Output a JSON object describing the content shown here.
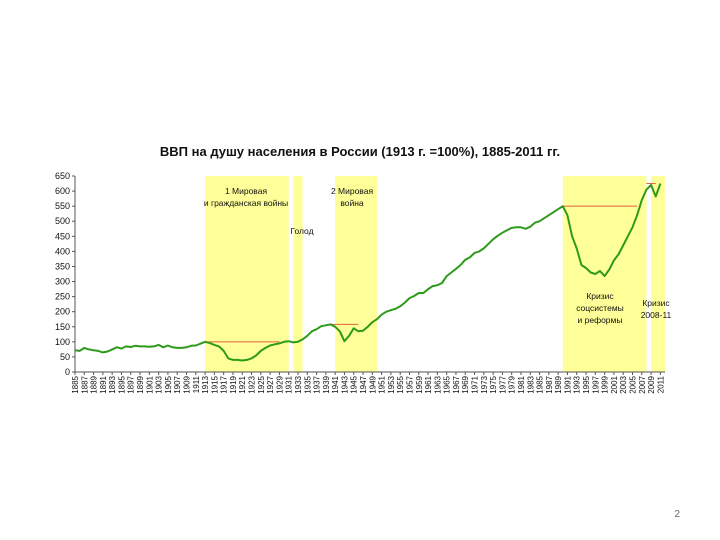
{
  "page_number": "2",
  "chart_data": {
    "type": "line",
    "title": "ВВП на душу населения в России (1913 г. =100%), 1885-2011 гг.",
    "xlabel": "",
    "ylabel": "",
    "xlim": [
      1885,
      2012
    ],
    "ylim": [
      0,
      650
    ],
    "y_ticks": [
      0,
      50,
      100,
      150,
      200,
      250,
      300,
      350,
      400,
      450,
      500,
      550,
      600,
      650
    ],
    "x_ticks": [
      1885,
      1887,
      1889,
      1891,
      1893,
      1895,
      1897,
      1899,
      1901,
      1903,
      1905,
      1907,
      1909,
      1911,
      1913,
      1915,
      1917,
      1919,
      1921,
      1923,
      1925,
      1927,
      1929,
      1931,
      1933,
      1935,
      1937,
      1939,
      1941,
      1943,
      1945,
      1947,
      1949,
      1951,
      1953,
      1955,
      1957,
      1959,
      1961,
      1963,
      1965,
      1967,
      1969,
      1971,
      1973,
      1975,
      1977,
      1979,
      1981,
      1983,
      1985,
      1987,
      1989,
      1991,
      1993,
      1995,
      1997,
      1999,
      2001,
      2003,
      2005,
      2007,
      2009,
      2011
    ],
    "grid": false,
    "legend": "none",
    "line_color": "#2e9a1a",
    "reference_line_color": "#e06040",
    "band_color": "#ffff99",
    "series": [
      {
        "x": [
          1885,
          1886,
          1887,
          1888,
          1889,
          1890,
          1891,
          1892,
          1893,
          1894,
          1895,
          1896,
          1897,
          1898,
          1899,
          1900,
          1901,
          1902,
          1903,
          1904,
          1905,
          1906,
          1907,
          1908,
          1909,
          1910,
          1911,
          1912,
          1913,
          1914,
          1915,
          1916,
          1917,
          1918,
          1919,
          1920,
          1921,
          1922,
          1923,
          1924,
          1925,
          1926,
          1927,
          1928,
          1929,
          1930,
          1931,
          1932,
          1933,
          1934,
          1935,
          1936,
          1937,
          1938,
          1939,
          1940,
          1941,
          1942,
          1943,
          1944,
          1945,
          1946,
          1947,
          1948,
          1949,
          1950,
          1951,
          1952,
          1953,
          1954,
          1955,
          1956,
          1957,
          1958,
          1959,
          1960,
          1961,
          1962,
          1963,
          1964,
          1965,
          1966,
          1967,
          1968,
          1969,
          1970,
          1971,
          1972,
          1973,
          1974,
          1975,
          1976,
          1977,
          1978,
          1979,
          1980,
          1981,
          1982,
          1983,
          1984,
          1985,
          1986,
          1987,
          1988,
          1989,
          1990,
          1991,
          1992,
          1993,
          1994,
          1995,
          1996,
          1997,
          1998,
          1999,
          2000,
          2001,
          2002,
          2003,
          2004,
          2005,
          2006,
          2007,
          2008,
          2009,
          2010,
          2011
        ],
        "values": [
          72,
          70,
          80,
          75,
          72,
          70,
          65,
          68,
          75,
          82,
          78,
          85,
          83,
          87,
          85,
          85,
          84,
          85,
          90,
          82,
          88,
          82,
          80,
          80,
          82,
          87,
          88,
          94,
          100,
          96,
          90,
          85,
          70,
          45,
          40,
          40,
          38,
          40,
          45,
          55,
          70,
          80,
          88,
          92,
          95,
          100,
          102,
          98,
          100,
          108,
          120,
          135,
          142,
          152,
          155,
          158,
          150,
          135,
          102,
          120,
          145,
          135,
          137,
          150,
          165,
          175,
          190,
          200,
          205,
          210,
          218,
          230,
          245,
          252,
          262,
          262,
          275,
          285,
          288,
          295,
          318,
          330,
          342,
          355,
          372,
          380,
          395,
          400,
          410,
          425,
          440,
          452,
          462,
          470,
          478,
          480,
          480,
          475,
          482,
          495,
          500,
          510,
          520,
          530,
          540,
          550,
          520,
          450,
          410,
          355,
          345,
          330,
          325,
          335,
          318,
          340,
          370,
          390,
          420,
          450,
          480,
          520,
          570,
          605,
          620,
          582,
          625
        ]
      }
    ],
    "reference_lines": [
      {
        "y": 100,
        "from": 1913,
        "to": 1929
      },
      {
        "y": 158,
        "from": 1940,
        "to": 1946
      },
      {
        "y": 550,
        "from": 1990,
        "to": 2006
      },
      {
        "y": 625,
        "from": 2008,
        "to": 2010
      }
    ],
    "shaded_bands": [
      {
        "from": 1913,
        "to": 1931,
        "label_lines": [
          "1 Мировая",
          "и гражданская войны"
        ]
      },
      {
        "from": 1932,
        "to": 1934,
        "label_lines": [
          "Голод"
        ]
      },
      {
        "from": 1941,
        "to": 1950,
        "label_lines": [
          "2 Мировая",
          "война"
        ]
      },
      {
        "from": 1990,
        "to": 2008,
        "label_lines": [
          "Кризис",
          "соцсистемы",
          "и реформы"
        ]
      },
      {
        "from": 2009,
        "to": 2012,
        "label_lines": [
          "Кризис",
          "2008-11"
        ]
      }
    ]
  }
}
